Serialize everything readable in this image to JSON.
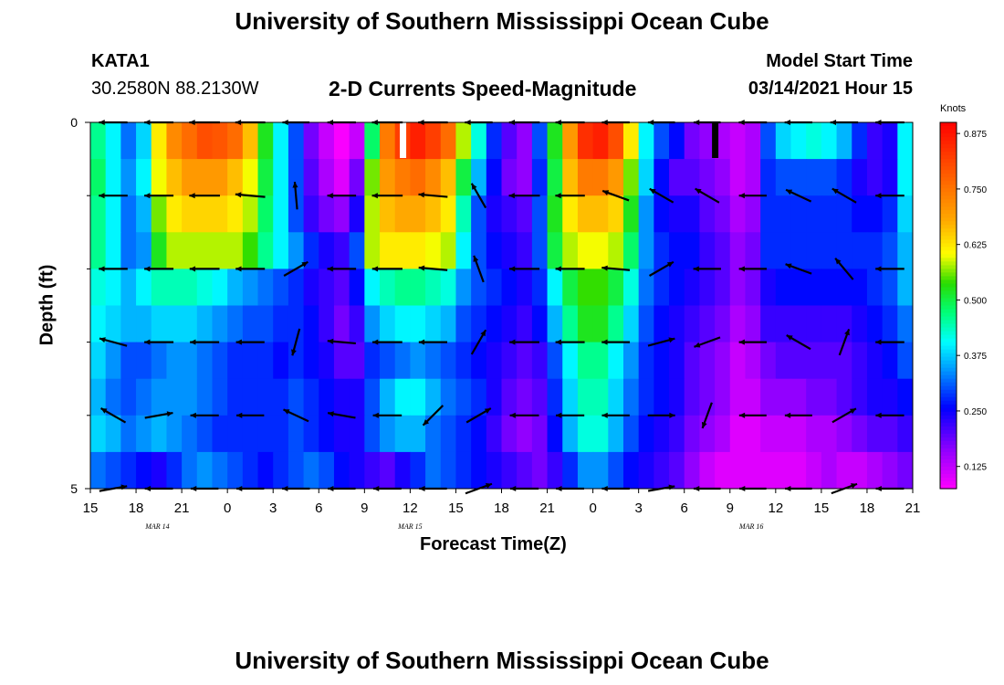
{
  "header": {
    "title": "University of Southern Mississippi Ocean Cube",
    "station_id": "KATA1",
    "station_coords": "30.2580N 88.2130W",
    "chart_title": "2-D Currents Speed-Magnitude",
    "model_start_label": "Model Start Time",
    "model_start_value": "03/14/2021 Hour 15"
  },
  "footer": {
    "title": "University of Southern Mississippi Ocean Cube"
  },
  "chart_data": {
    "type": "heatmap",
    "title": "2-D Currents Speed-Magnitude",
    "xlabel": "Forecast Time(Z)",
    "ylabel": "Depth (ft)",
    "x_range_hours": [
      0,
      54
    ],
    "y_range": [
      0,
      5
    ],
    "x_ticks": [
      {
        "hour": 0,
        "label": "15"
      },
      {
        "hour": 3,
        "label": "18"
      },
      {
        "hour": 6,
        "label": "21"
      },
      {
        "hour": 9,
        "label": "0"
      },
      {
        "hour": 12,
        "label": "3"
      },
      {
        "hour": 15,
        "label": "6"
      },
      {
        "hour": 18,
        "label": "9"
      },
      {
        "hour": 21,
        "label": "12"
      },
      {
        "hour": 24,
        "label": "15"
      },
      {
        "hour": 27,
        "label": "18"
      },
      {
        "hour": 30,
        "label": "21"
      },
      {
        "hour": 33,
        "label": "0"
      },
      {
        "hour": 36,
        "label": "3"
      },
      {
        "hour": 39,
        "label": "6"
      },
      {
        "hour": 42,
        "label": "9"
      },
      {
        "hour": 45,
        "label": "12"
      },
      {
        "hour": 48,
        "label": "15"
      },
      {
        "hour": 51,
        "label": "18"
      },
      {
        "hour": 54,
        "label": "21"
      }
    ],
    "date_labels": [
      {
        "hour": 4.4,
        "label": "MAR 14"
      },
      {
        "hour": 21.0,
        "label": "MAR 15"
      },
      {
        "hour": 43.4,
        "label": "MAR 16"
      }
    ],
    "y_tick_labels": [
      {
        "value": 0,
        "label": "0"
      },
      {
        "value": 5,
        "label": "5"
      }
    ],
    "y_minor_ticks": [
      1,
      2,
      3,
      4
    ],
    "colorbar": {
      "unit": "Knots",
      "min": 0.075,
      "max": 0.9,
      "ticks": [
        "0.875",
        "0.750",
        "0.625",
        "0.500",
        "0.375",
        "0.250",
        "0.125"
      ],
      "tick_values": [
        0.875,
        0.75,
        0.625,
        0.5,
        0.375,
        0.25,
        0.125
      ]
    },
    "column_hours": [
      0,
      1,
      2,
      3,
      4,
      5,
      6,
      7,
      8,
      9,
      10,
      11,
      12,
      13,
      14,
      15,
      16,
      17,
      18,
      19,
      20,
      21,
      22,
      23,
      24,
      25,
      26,
      27,
      28,
      29,
      30,
      31,
      32,
      33,
      34,
      35,
      36,
      37,
      38,
      39,
      40,
      41,
      42,
      43,
      44,
      45,
      46,
      47,
      48,
      49,
      50,
      51,
      52,
      53,
      54
    ],
    "depth_bands": [
      {
        "depth": 0.25,
        "speeds": [
          0.46,
          0.4,
          0.32,
          0.38,
          0.62,
          0.72,
          0.76,
          0.8,
          0.79,
          0.76,
          0.66,
          0.52,
          0.4,
          0.3,
          0.18,
          0.12,
          0.08,
          0.12,
          0.48,
          0.74,
          0.82,
          0.86,
          0.82,
          0.76,
          0.58,
          0.42,
          0.28,
          0.2,
          0.16,
          0.3,
          0.52,
          0.7,
          0.84,
          0.86,
          0.8,
          0.62,
          0.4,
          0.3,
          0.26,
          0.18,
          0.16,
          0.14,
          0.12,
          0.14,
          0.3,
          0.38,
          0.4,
          0.42,
          0.4,
          0.36,
          0.28,
          0.22,
          0.24,
          0.4,
          0.44
        ]
      },
      {
        "depth": 0.75,
        "speeds": [
          0.48,
          0.4,
          0.34,
          0.4,
          0.6,
          0.66,
          0.7,
          0.7,
          0.7,
          0.66,
          0.6,
          0.5,
          0.4,
          0.3,
          0.2,
          0.14,
          0.1,
          0.18,
          0.56,
          0.7,
          0.74,
          0.76,
          0.72,
          0.66,
          0.5,
          0.36,
          0.26,
          0.18,
          0.16,
          0.28,
          0.5,
          0.66,
          0.74,
          0.74,
          0.7,
          0.56,
          0.38,
          0.26,
          0.2,
          0.2,
          0.18,
          0.16,
          0.12,
          0.14,
          0.28,
          0.3,
          0.3,
          0.3,
          0.3,
          0.28,
          0.24,
          0.22,
          0.24,
          0.4,
          0.48
        ]
      },
      {
        "depth": 1.25,
        "speeds": [
          0.46,
          0.4,
          0.32,
          0.36,
          0.56,
          0.62,
          0.64,
          0.64,
          0.64,
          0.62,
          0.58,
          0.48,
          0.4,
          0.3,
          0.22,
          0.18,
          0.16,
          0.24,
          0.58,
          0.66,
          0.68,
          0.68,
          0.66,
          0.62,
          0.44,
          0.3,
          0.24,
          0.22,
          0.2,
          0.3,
          0.52,
          0.62,
          0.66,
          0.66,
          0.64,
          0.52,
          0.34,
          0.26,
          0.24,
          0.24,
          0.2,
          0.18,
          0.14,
          0.16,
          0.28,
          0.28,
          0.28,
          0.28,
          0.28,
          0.28,
          0.26,
          0.26,
          0.28,
          0.38,
          0.48
        ]
      },
      {
        "depth": 1.75,
        "speeds": [
          0.46,
          0.4,
          0.32,
          0.34,
          0.52,
          0.58,
          0.58,
          0.58,
          0.58,
          0.58,
          0.54,
          0.46,
          0.4,
          0.34,
          0.28,
          0.24,
          0.22,
          0.3,
          0.58,
          0.62,
          0.62,
          0.62,
          0.6,
          0.58,
          0.4,
          0.3,
          0.26,
          0.24,
          0.22,
          0.3,
          0.5,
          0.58,
          0.6,
          0.6,
          0.58,
          0.48,
          0.34,
          0.28,
          0.26,
          0.26,
          0.22,
          0.2,
          0.16,
          0.18,
          0.28,
          0.28,
          0.28,
          0.28,
          0.28,
          0.28,
          0.28,
          0.28,
          0.3,
          0.36,
          0.44
        ]
      },
      {
        "depth": 2.25,
        "speeds": [
          0.42,
          0.4,
          0.36,
          0.4,
          0.44,
          0.44,
          0.44,
          0.42,
          0.4,
          0.36,
          0.34,
          0.32,
          0.3,
          0.28,
          0.24,
          0.22,
          0.2,
          0.26,
          0.4,
          0.44,
          0.46,
          0.46,
          0.44,
          0.42,
          0.34,
          0.3,
          0.28,
          0.26,
          0.24,
          0.28,
          0.4,
          0.5,
          0.54,
          0.54,
          0.5,
          0.42,
          0.32,
          0.28,
          0.26,
          0.24,
          0.22,
          0.2,
          0.16,
          0.18,
          0.24,
          0.26,
          0.26,
          0.26,
          0.26,
          0.26,
          0.26,
          0.28,
          0.3,
          0.36,
          0.42
        ]
      },
      {
        "depth": 2.75,
        "speeds": [
          0.4,
          0.38,
          0.36,
          0.36,
          0.38,
          0.38,
          0.38,
          0.36,
          0.34,
          0.32,
          0.3,
          0.3,
          0.28,
          0.28,
          0.26,
          0.22,
          0.18,
          0.22,
          0.34,
          0.38,
          0.4,
          0.4,
          0.38,
          0.36,
          0.3,
          0.28,
          0.26,
          0.24,
          0.22,
          0.26,
          0.36,
          0.46,
          0.52,
          0.52,
          0.46,
          0.38,
          0.3,
          0.26,
          0.24,
          0.22,
          0.2,
          0.18,
          0.14,
          0.16,
          0.22,
          0.22,
          0.22,
          0.22,
          0.22,
          0.22,
          0.24,
          0.26,
          0.28,
          0.32,
          0.4
        ]
      },
      {
        "depth": 3.25,
        "speeds": [
          0.38,
          0.34,
          0.3,
          0.3,
          0.32,
          0.34,
          0.34,
          0.32,
          0.3,
          0.28,
          0.28,
          0.28,
          0.26,
          0.28,
          0.26,
          0.24,
          0.2,
          0.2,
          0.28,
          0.3,
          0.32,
          0.34,
          0.32,
          0.3,
          0.28,
          0.26,
          0.24,
          0.22,
          0.2,
          0.22,
          0.3,
          0.4,
          0.46,
          0.46,
          0.4,
          0.34,
          0.28,
          0.26,
          0.24,
          0.2,
          0.18,
          0.16,
          0.12,
          0.14,
          0.18,
          0.2,
          0.2,
          0.2,
          0.2,
          0.2,
          0.22,
          0.24,
          0.26,
          0.3,
          0.36
        ]
      },
      {
        "depth": 3.75,
        "speeds": [
          0.36,
          0.32,
          0.3,
          0.32,
          0.34,
          0.34,
          0.34,
          0.32,
          0.3,
          0.28,
          0.28,
          0.28,
          0.28,
          0.3,
          0.28,
          0.26,
          0.24,
          0.24,
          0.3,
          0.36,
          0.4,
          0.4,
          0.36,
          0.32,
          0.3,
          0.28,
          0.24,
          0.2,
          0.18,
          0.2,
          0.28,
          0.38,
          0.44,
          0.44,
          0.38,
          0.32,
          0.28,
          0.26,
          0.24,
          0.2,
          0.18,
          0.16,
          0.12,
          0.12,
          0.16,
          0.16,
          0.16,
          0.18,
          0.18,
          0.2,
          0.22,
          0.24,
          0.24,
          0.26,
          0.3
        ]
      },
      {
        "depth": 4.25,
        "speeds": [
          0.38,
          0.36,
          0.32,
          0.34,
          0.36,
          0.34,
          0.32,
          0.3,
          0.28,
          0.28,
          0.28,
          0.28,
          0.28,
          0.3,
          0.28,
          0.26,
          0.24,
          0.24,
          0.3,
          0.34,
          0.36,
          0.36,
          0.32,
          0.3,
          0.28,
          0.26,
          0.22,
          0.18,
          0.16,
          0.18,
          0.26,
          0.36,
          0.42,
          0.42,
          0.36,
          0.3,
          0.26,
          0.24,
          0.22,
          0.18,
          0.16,
          0.14,
          0.1,
          0.1,
          0.12,
          0.12,
          0.12,
          0.14,
          0.14,
          0.16,
          0.18,
          0.2,
          0.2,
          0.22,
          0.24
        ]
      },
      {
        "depth": 4.75,
        "speeds": [
          0.32,
          0.3,
          0.28,
          0.26,
          0.24,
          0.28,
          0.32,
          0.34,
          0.32,
          0.3,
          0.28,
          0.26,
          0.28,
          0.3,
          0.32,
          0.3,
          0.26,
          0.24,
          0.22,
          0.2,
          0.24,
          0.28,
          0.32,
          0.3,
          0.28,
          0.26,
          0.24,
          0.22,
          0.2,
          0.18,
          0.22,
          0.28,
          0.34,
          0.34,
          0.3,
          0.26,
          0.24,
          0.22,
          0.2,
          0.16,
          0.12,
          0.1,
          0.1,
          0.1,
          0.1,
          0.1,
          0.1,
          0.12,
          0.14,
          0.12,
          0.12,
          0.14,
          0.16,
          0.18,
          0.2
        ]
      }
    ],
    "markers": [
      {
        "hour": 20.5,
        "color": "#ffffff"
      },
      {
        "hour": 41.0,
        "color": "#000000"
      }
    ],
    "arrow_columns_hours": [
      1.5,
      4.5,
      7.5,
      10.5,
      13.5,
      16.5,
      19.5,
      22.5,
      25.5,
      28.5,
      31.5,
      34.5,
      37.5,
      40.5,
      43.5,
      46.5,
      49.5,
      52.5
    ],
    "arrow_rows_depth": [
      0,
      1,
      2,
      3,
      4,
      5
    ],
    "arrow_directions_deg": [
      [
        270,
        270,
        270,
        270,
        270,
        270,
        270,
        270,
        270,
        270,
        270,
        270,
        270,
        270,
        270,
        270,
        270,
        270
      ],
      [
        270,
        270,
        270,
        275,
        355,
        270,
        270,
        275,
        330,
        270,
        270,
        290,
        300,
        300,
        270,
        295,
        300,
        270
      ],
      [
        270,
        270,
        270,
        270,
        60,
        270,
        270,
        275,
        340,
        270,
        270,
        275,
        60,
        270,
        270,
        290,
        320,
        270
      ],
      [
        285,
        270,
        270,
        270,
        195,
        275,
        270,
        270,
        30,
        270,
        270,
        270,
        75,
        250,
        270,
        300,
        20,
        270
      ],
      [
        300,
        80,
        270,
        270,
        295,
        280,
        270,
        225,
        60,
        270,
        270,
        270,
        90,
        200,
        270,
        270,
        60,
        270
      ],
      [
        80,
        270,
        270,
        270,
        270,
        270,
        270,
        270,
        70,
        270,
        270,
        270,
        80,
        270,
        270,
        270,
        70,
        270
      ]
    ],
    "arrow_speeds_knots": [
      [
        0.4,
        0.5,
        0.7,
        0.6,
        0.2,
        0.4,
        0.7,
        0.55,
        0.3,
        0.7,
        0.5,
        0.3,
        0.2,
        0.2,
        0.35,
        0.3,
        0.3,
        0.45
      ],
      [
        0.45,
        0.5,
        0.7,
        0.6,
        0.3,
        0.45,
        0.7,
        0.5,
        0.35,
        0.75,
        0.55,
        0.35,
        0.25,
        0.3,
        0.3,
        0.3,
        0.3,
        0.45
      ],
      [
        0.45,
        0.5,
        0.6,
        0.5,
        0.3,
        0.45,
        0.65,
        0.45,
        0.35,
        0.65,
        0.5,
        0.35,
        0.3,
        0.3,
        0.3,
        0.3,
        0.3,
        0.45
      ],
      [
        0.4,
        0.5,
        0.5,
        0.4,
        0.3,
        0.4,
        0.6,
        0.4,
        0.35,
        0.6,
        0.5,
        0.35,
        0.3,
        0.3,
        0.3,
        0.3,
        0.3,
        0.45
      ],
      [
        0.4,
        0.4,
        0.4,
        0.3,
        0.3,
        0.35,
        0.45,
        0.35,
        0.35,
        0.5,
        0.4,
        0.3,
        0.25,
        0.25,
        0.25,
        0.25,
        0.25,
        0.4
      ],
      [
        0.35,
        0.35,
        0.3,
        0.3,
        0.3,
        0.3,
        0.35,
        0.3,
        0.35,
        0.4,
        0.35,
        0.3,
        0.2,
        0.2,
        0.2,
        0.2,
        0.25,
        0.35
      ]
    ]
  }
}
